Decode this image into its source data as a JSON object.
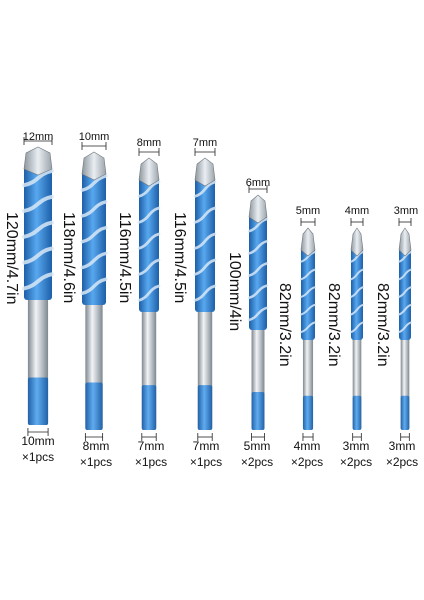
{
  "colors": {
    "tip": "#e9eef2",
    "flute": "#2f86d6",
    "flute_dark": "#1d5fa8",
    "shank": "#b9c0c6",
    "shank_dark": "#7e878f",
    "background": "#ffffff"
  },
  "bits": [
    {
      "tip": "12mm",
      "length": "120mm/4.7in",
      "shank": "10mm",
      "qty": "×1pcs"
    },
    {
      "tip": "10mm",
      "length": "118mm/4.6in",
      "shank": "8mm",
      "qty": "×1pcs"
    },
    {
      "tip": "8mm",
      "length": "116mm/4.5in",
      "shank": "7mm",
      "qty": "×1pcs"
    },
    {
      "tip": "7mm",
      "length": "116mm/4.5in",
      "shank": "7mm",
      "qty": "×1pcs"
    },
    {
      "tip": "6mm",
      "length": "100mm/4in",
      "shank": "5mm",
      "qty": "×2pcs"
    },
    {
      "tip": "5mm",
      "length": "82mm/3.2in",
      "shank": "4mm",
      "qty": "×2pcs"
    },
    {
      "tip": "4mm",
      "length": "82mm/3.2in",
      "shank": "3mm",
      "qty": "×2pcs"
    },
    {
      "tip": "3mm",
      "length": "82mm/3.2in",
      "shank": "3mm",
      "qty": "×2pcs"
    }
  ]
}
